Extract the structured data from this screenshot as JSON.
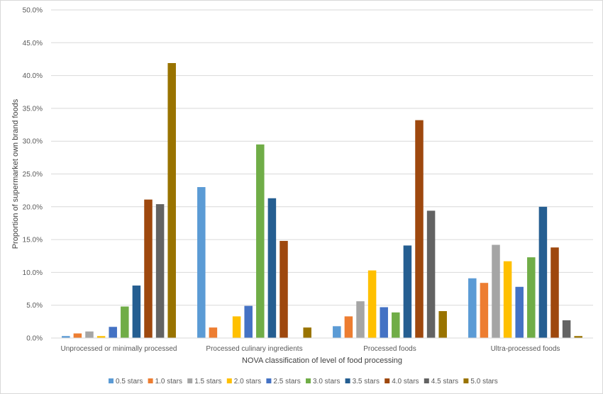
{
  "chart_data": {
    "type": "bar",
    "title": "",
    "xlabel": "NOVA classification of level of food processing",
    "ylabel": "Proportion of supermarket own brand foods",
    "ylim": [
      0,
      50
    ],
    "y_ticks": [
      "0.0%",
      "5.0%",
      "10.0%",
      "15.0%",
      "20.0%",
      "25.0%",
      "30.0%",
      "35.0%",
      "40.0%",
      "45.0%",
      "50.0%"
    ],
    "grid": "horizontal",
    "legend_position": "bottom",
    "categories": [
      "Unprocessed or minimally processed",
      "Processed culinary ingredients",
      "Processed foods",
      "Ultra-processed foods"
    ],
    "series": [
      {
        "name": "0.5 stars",
        "color": "#5B9BD5",
        "values": [
          0.3,
          23.0,
          1.8,
          9.1
        ]
      },
      {
        "name": "1.0 stars",
        "color": "#ED7D31",
        "values": [
          0.7,
          1.6,
          3.3,
          8.4
        ]
      },
      {
        "name": "1.5 stars",
        "color": "#A5A5A5",
        "values": [
          1.0,
          0.0,
          5.6,
          14.2
        ]
      },
      {
        "name": "2.0 stars",
        "color": "#FFC000",
        "values": [
          0.3,
          3.3,
          10.3,
          11.7
        ]
      },
      {
        "name": "2.5 stars",
        "color": "#4472C4",
        "values": [
          1.7,
          4.9,
          4.7,
          7.8
        ]
      },
      {
        "name": "3.0 stars",
        "color": "#70AD47",
        "values": [
          4.8,
          29.5,
          3.9,
          12.3
        ]
      },
      {
        "name": "3.5 stars",
        "color": "#255E91",
        "values": [
          8.0,
          21.3,
          14.1,
          20.0
        ]
      },
      {
        "name": "4.0 stars",
        "color": "#9E480E",
        "values": [
          21.1,
          14.8,
          33.2,
          13.8
        ]
      },
      {
        "name": "4.5 stars",
        "color": "#636363",
        "values": [
          20.4,
          0.0,
          19.4,
          2.7
        ]
      },
      {
        "name": "5.0 stars",
        "color": "#997300",
        "values": [
          41.9,
          1.6,
          4.1,
          0.3
        ]
      }
    ]
  }
}
